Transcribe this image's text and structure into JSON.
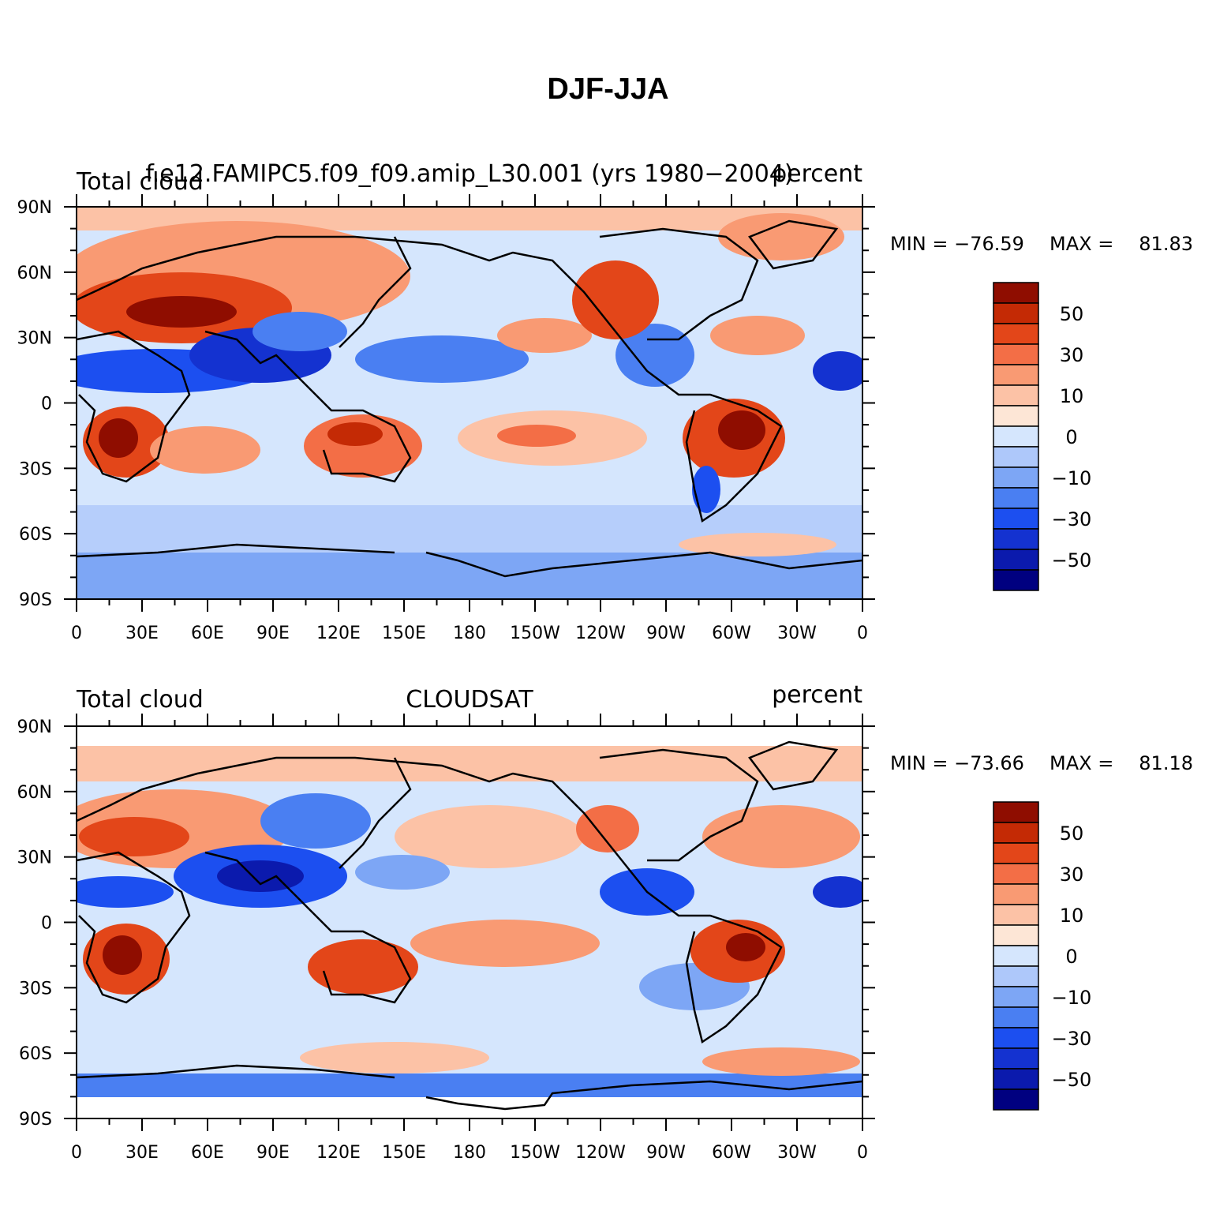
{
  "title": "DJF-JJA",
  "colors": [
    "#000080",
    "#0b1aad",
    "#1432d0",
    "#1c4ff0",
    "#4a7ff2",
    "#7da6f5",
    "#aec8fa",
    "#d5e6fd",
    "#fde6d6",
    "#fcc2a6",
    "#f99a73",
    "#f36e46",
    "#e34619",
    "#c42a05",
    "#8f0d00"
  ],
  "colorbar_labels": [
    "−50",
    "−30",
    "−10",
    "0",
    "10",
    "30",
    "50"
  ],
  "x_ticks": [
    "0",
    "30E",
    "60E",
    "90E",
    "120E",
    "150E",
    "180",
    "150W",
    "120W",
    "90W",
    "60W",
    "30W",
    "0"
  ],
  "y_ticks": [
    "90N",
    "60N",
    "30N",
    "0",
    "30S",
    "60S",
    "90S"
  ],
  "panels": [
    {
      "left_label": "Total cloud",
      "center_label": "f.e12.FAMIPC5.f09_f09.amip_L30.001 (yrs 1980−2004)",
      "right_label": "percent",
      "min_label": "MIN = −76.59",
      "max_label": "MAX =",
      "max_value": "81.83"
    },
    {
      "left_label": "Total cloud",
      "center_label": "CLOUDSAT",
      "right_label": "percent",
      "min_label": "MIN = −73.66",
      "max_label": "MAX =",
      "max_value": "81.18"
    }
  ]
}
